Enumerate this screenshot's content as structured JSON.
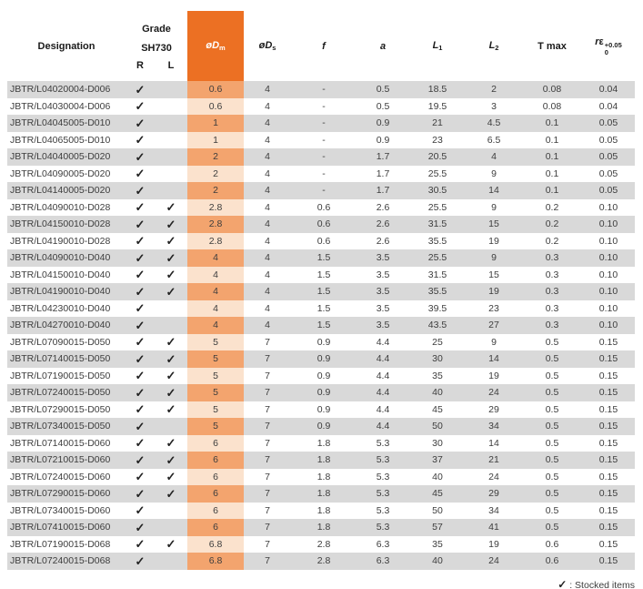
{
  "table": {
    "check_glyph": "✓",
    "headers": {
      "designation": "Designation",
      "grade_line1": "Grade",
      "grade_line2": "SH730",
      "grade_r": "R",
      "grade_l": "L",
      "dm_main": "øD",
      "dm_sub": "m",
      "ds_main": "øD",
      "ds_sub": "s",
      "f": "f",
      "a": "a",
      "l1_main": "L",
      "l1_sub": "1",
      "l2_main": "L",
      "l2_sub": "2",
      "tmax": "T max",
      "re_r": "r",
      "re_eps": "ε",
      "re_sup": "+0.05",
      "re_sub": "0"
    },
    "rows": [
      {
        "designation": "JBTR/L04020004-D006",
        "r": true,
        "l": false,
        "dm": "0.6",
        "ds": "4",
        "f": "-",
        "a": "0.5",
        "l1": "18.5",
        "l2": "2",
        "tmax": "0.08",
        "re": "0.04"
      },
      {
        "designation": "JBTR/L04030004-D006",
        "r": true,
        "l": false,
        "dm": "0.6",
        "ds": "4",
        "f": "-",
        "a": "0.5",
        "l1": "19.5",
        "l2": "3",
        "tmax": "0.08",
        "re": "0.04"
      },
      {
        "designation": "JBTR/L04045005-D010",
        "r": true,
        "l": false,
        "dm": "1",
        "ds": "4",
        "f": "-",
        "a": "0.9",
        "l1": "21",
        "l2": "4.5",
        "tmax": "0.1",
        "re": "0.05"
      },
      {
        "designation": "JBTR/L04065005-D010",
        "r": true,
        "l": false,
        "dm": "1",
        "ds": "4",
        "f": "-",
        "a": "0.9",
        "l1": "23",
        "l2": "6.5",
        "tmax": "0.1",
        "re": "0.05"
      },
      {
        "designation": "JBTR/L04040005-D020",
        "r": true,
        "l": false,
        "dm": "2",
        "ds": "4",
        "f": "-",
        "a": "1.7",
        "l1": "20.5",
        "l2": "4",
        "tmax": "0.1",
        "re": "0.05"
      },
      {
        "designation": "JBTR/L04090005-D020",
        "r": true,
        "l": false,
        "dm": "2",
        "ds": "4",
        "f": "-",
        "a": "1.7",
        "l1": "25.5",
        "l2": "9",
        "tmax": "0.1",
        "re": "0.05"
      },
      {
        "designation": "JBTR/L04140005-D020",
        "r": true,
        "l": false,
        "dm": "2",
        "ds": "4",
        "f": "-",
        "a": "1.7",
        "l1": "30.5",
        "l2": "14",
        "tmax": "0.1",
        "re": "0.05"
      },
      {
        "designation": "JBTR/L04090010-D028",
        "r": true,
        "l": true,
        "dm": "2.8",
        "ds": "4",
        "f": "0.6",
        "a": "2.6",
        "l1": "25.5",
        "l2": "9",
        "tmax": "0.2",
        "re": "0.10"
      },
      {
        "designation": "JBTR/L04150010-D028",
        "r": true,
        "l": true,
        "dm": "2.8",
        "ds": "4",
        "f": "0.6",
        "a": "2.6",
        "l1": "31.5",
        "l2": "15",
        "tmax": "0.2",
        "re": "0.10"
      },
      {
        "designation": "JBTR/L04190010-D028",
        "r": true,
        "l": true,
        "dm": "2.8",
        "ds": "4",
        "f": "0.6",
        "a": "2.6",
        "l1": "35.5",
        "l2": "19",
        "tmax": "0.2",
        "re": "0.10"
      },
      {
        "designation": "JBTR/L04090010-D040",
        "r": true,
        "l": true,
        "dm": "4",
        "ds": "4",
        "f": "1.5",
        "a": "3.5",
        "l1": "25.5",
        "l2": "9",
        "tmax": "0.3",
        "re": "0.10"
      },
      {
        "designation": "JBTR/L04150010-D040",
        "r": true,
        "l": true,
        "dm": "4",
        "ds": "4",
        "f": "1.5",
        "a": "3.5",
        "l1": "31.5",
        "l2": "15",
        "tmax": "0.3",
        "re": "0.10"
      },
      {
        "designation": "JBTR/L04190010-D040",
        "r": true,
        "l": true,
        "dm": "4",
        "ds": "4",
        "f": "1.5",
        "a": "3.5",
        "l1": "35.5",
        "l2": "19",
        "tmax": "0.3",
        "re": "0.10"
      },
      {
        "designation": "JBTR/L04230010-D040",
        "r": true,
        "l": false,
        "dm": "4",
        "ds": "4",
        "f": "1.5",
        "a": "3.5",
        "l1": "39.5",
        "l2": "23",
        "tmax": "0.3",
        "re": "0.10"
      },
      {
        "designation": "JBTR/L04270010-D040",
        "r": true,
        "l": false,
        "dm": "4",
        "ds": "4",
        "f": "1.5",
        "a": "3.5",
        "l1": "43.5",
        "l2": "27",
        "tmax": "0.3",
        "re": "0.10"
      },
      {
        "designation": "JBTR/L07090015-D050",
        "r": true,
        "l": true,
        "dm": "5",
        "ds": "7",
        "f": "0.9",
        "a": "4.4",
        "l1": "25",
        "l2": "9",
        "tmax": "0.5",
        "re": "0.15"
      },
      {
        "designation": "JBTR/L07140015-D050",
        "r": true,
        "l": true,
        "dm": "5",
        "ds": "7",
        "f": "0.9",
        "a": "4.4",
        "l1": "30",
        "l2": "14",
        "tmax": "0.5",
        "re": "0.15"
      },
      {
        "designation": "JBTR/L07190015-D050",
        "r": true,
        "l": true,
        "dm": "5",
        "ds": "7",
        "f": "0.9",
        "a": "4.4",
        "l1": "35",
        "l2": "19",
        "tmax": "0.5",
        "re": "0.15"
      },
      {
        "designation": "JBTR/L07240015-D050",
        "r": true,
        "l": true,
        "dm": "5",
        "ds": "7",
        "f": "0.9",
        "a": "4.4",
        "l1": "40",
        "l2": "24",
        "tmax": "0.5",
        "re": "0.15"
      },
      {
        "designation": "JBTR/L07290015-D050",
        "r": true,
        "l": true,
        "dm": "5",
        "ds": "7",
        "f": "0.9",
        "a": "4.4",
        "l1": "45",
        "l2": "29",
        "tmax": "0.5",
        "re": "0.15"
      },
      {
        "designation": "JBTR/L07340015-D050",
        "r": true,
        "l": false,
        "dm": "5",
        "ds": "7",
        "f": "0.9",
        "a": "4.4",
        "l1": "50",
        "l2": "34",
        "tmax": "0.5",
        "re": "0.15"
      },
      {
        "designation": "JBTR/L07140015-D060",
        "r": true,
        "l": true,
        "dm": "6",
        "ds": "7",
        "f": "1.8",
        "a": "5.3",
        "l1": "30",
        "l2": "14",
        "tmax": "0.5",
        "re": "0.15"
      },
      {
        "designation": "JBTR/L07210015-D060",
        "r": true,
        "l": true,
        "dm": "6",
        "ds": "7",
        "f": "1.8",
        "a": "5.3",
        "l1": "37",
        "l2": "21",
        "tmax": "0.5",
        "re": "0.15"
      },
      {
        "designation": "JBTR/L07240015-D060",
        "r": true,
        "l": true,
        "dm": "6",
        "ds": "7",
        "f": "1.8",
        "a": "5.3",
        "l1": "40",
        "l2": "24",
        "tmax": "0.5",
        "re": "0.15"
      },
      {
        "designation": "JBTR/L07290015-D060",
        "r": true,
        "l": true,
        "dm": "6",
        "ds": "7",
        "f": "1.8",
        "a": "5.3",
        "l1": "45",
        "l2": "29",
        "tmax": "0.5",
        "re": "0.15"
      },
      {
        "designation": "JBTR/L07340015-D060",
        "r": true,
        "l": false,
        "dm": "6",
        "ds": "7",
        "f": "1.8",
        "a": "5.3",
        "l1": "50",
        "l2": "34",
        "tmax": "0.5",
        "re": "0.15"
      },
      {
        "designation": "JBTR/L07410015-D060",
        "r": true,
        "l": false,
        "dm": "6",
        "ds": "7",
        "f": "1.8",
        "a": "5.3",
        "l1": "57",
        "l2": "41",
        "tmax": "0.5",
        "re": "0.15"
      },
      {
        "designation": "JBTR/L07190015-D068",
        "r": true,
        "l": true,
        "dm": "6.8",
        "ds": "7",
        "f": "2.8",
        "a": "6.3",
        "l1": "35",
        "l2": "19",
        "tmax": "0.6",
        "re": "0.15"
      },
      {
        "designation": "JBTR/L07240015-D068",
        "r": true,
        "l": false,
        "dm": "6.8",
        "ds": "7",
        "f": "2.8",
        "a": "6.3",
        "l1": "40",
        "l2": "24",
        "tmax": "0.6",
        "re": "0.15"
      }
    ]
  },
  "footer": {
    "check": "✓",
    "note": ": Stocked items"
  },
  "colors": {
    "header_orange": "#EC7023",
    "dm_cell_on_gray": "#F3A46E",
    "dm_cell_on_white": "#FBE2CD",
    "row_gray": "#D9D9D9"
  }
}
